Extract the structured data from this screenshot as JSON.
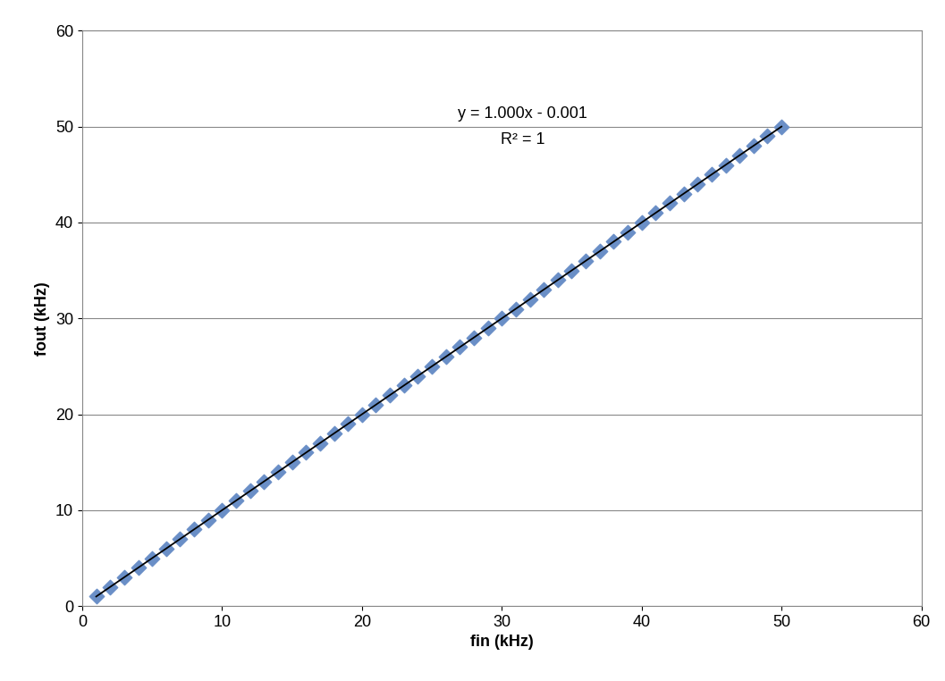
{
  "chart_data": {
    "type": "scatter",
    "x_label": "fin (kHz)",
    "y_label": "fout (kHz)",
    "annotations": [
      "y = 1.000x - 0.001",
      "R² = 1"
    ],
    "x": [
      1,
      2,
      3,
      4,
      5,
      6,
      7,
      8,
      9,
      10,
      11,
      12,
      13,
      14,
      15,
      16,
      17,
      18,
      19,
      20,
      21,
      22,
      23,
      24,
      25,
      26,
      27,
      28,
      29,
      30,
      31,
      32,
      33,
      34,
      35,
      36,
      37,
      38,
      39,
      40,
      41,
      42,
      43,
      44,
      45,
      46,
      47,
      48,
      49,
      50
    ],
    "series": [
      {
        "type": "scatter",
        "color": "#6a8fc7",
        "marker": "diamond",
        "values": [
          1,
          2,
          3,
          4,
          5,
          6,
          7,
          8,
          9,
          10,
          11,
          12,
          13,
          14,
          15,
          16,
          17,
          18,
          19,
          20,
          21,
          22,
          23,
          24,
          25,
          26,
          27,
          28,
          29,
          30,
          31,
          32,
          33,
          34,
          35,
          36,
          37,
          38,
          39,
          40,
          41,
          42,
          43,
          44,
          45,
          46,
          47,
          48,
          49,
          50
        ]
      },
      {
        "type": "line",
        "color": "#000000",
        "line_style": "solid",
        "x": [
          1,
          50
        ],
        "values": [
          0.999,
          49.999
        ]
      }
    ],
    "xlim": [
      0,
      60
    ],
    "xticks": [
      0,
      10,
      20,
      30,
      40,
      50,
      60
    ],
    "ylim": [
      0,
      60
    ],
    "yticks": [
      0,
      10,
      20,
      30,
      40,
      50,
      60
    ],
    "grid": "y"
  }
}
